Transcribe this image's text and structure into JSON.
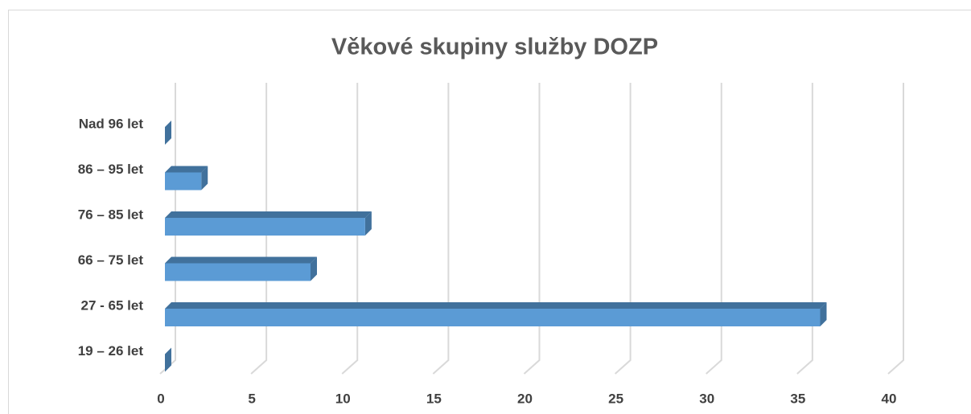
{
  "chart_data": {
    "type": "bar3d-horizontal",
    "title": "Věkové skupiny služby DOZP",
    "categories": [
      "Nad 96 let",
      "86 – 95 let",
      "76 – 85 let",
      "66 – 75 let",
      "27 - 65 let",
      "19 – 26 let"
    ],
    "values": [
      0,
      2,
      11,
      8,
      36,
      0
    ],
    "color": "#5b9bd5",
    "side_color": "#41719c",
    "xlim": [
      0,
      40
    ],
    "xticks": [
      0,
      5,
      10,
      15,
      20,
      25,
      30,
      35,
      40
    ],
    "grid": true
  }
}
